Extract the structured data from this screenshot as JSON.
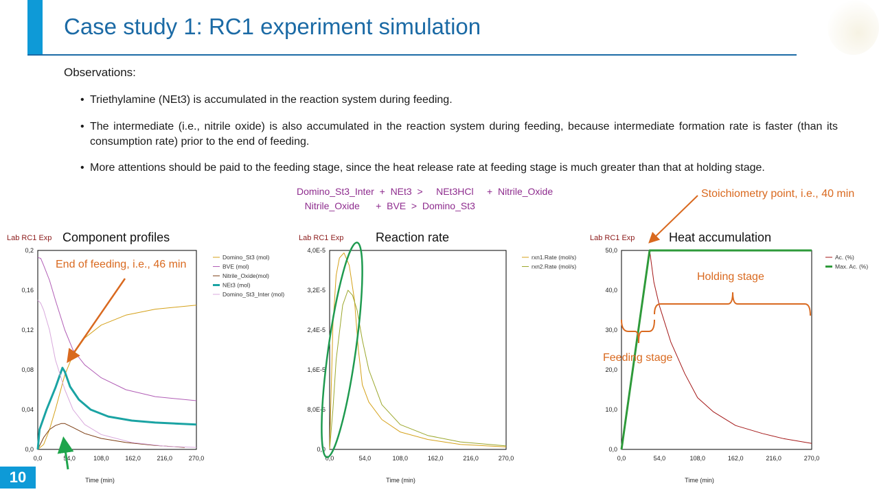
{
  "slide": {
    "title": "Case study 1: RC1 experiment simulation",
    "observations_heading": "Observations:",
    "bullets": [
      "Triethylamine (NEt3) is accumulated in the reaction system during feeding.",
      "The intermediate (i.e., nitrile oxide) is also accumulated in the reaction system during feeding, because intermediate formation rate is faster (than its consumption rate) prior to the end of feeding.",
      "More attentions should be paid to the feeding stage, since the heat release rate at feeding stage is much greater than that at holding stage."
    ],
    "bullet_char": "•",
    "equations": [
      "Domino_St3_Inter  +  NEt3  >     NEt3HCl     +  Nitrile_Oxide",
      "   Nitrile_Oxide      +  BVE  >  Domino_St3"
    ],
    "page_number": "10",
    "accent_color": "#0e9ad7",
    "title_color": "#1b6aa5",
    "annotation_color": "#d9691f"
  },
  "annotations": {
    "end_of_feeding": "End of feeding, i.e., 46 min",
    "stoichiometry_point": "Stoichiometry point, i.e., 40 min",
    "holding_stage": "Holding stage",
    "feeding_stage": "Feeding stage"
  },
  "chart_data": [
    {
      "type": "line",
      "title": "Component profiles",
      "source_label": "Lab  RC1  Exp",
      "xlabel": "Time (min)",
      "ylabel": "",
      "xlim": [
        0,
        270
      ],
      "ylim": [
        0,
        0.2
      ],
      "xticks": [
        "0,0",
        "54,0",
        "108,0",
        "162,0",
        "216,0",
        "270,0"
      ],
      "yticks": [
        "0,0",
        "0,04",
        "0,08",
        "0,12",
        "0,16",
        "0,2"
      ],
      "legend": "right",
      "series": [
        {
          "name": "Domino_St3 (mol)",
          "color": "#d4a017",
          "width": 1,
          "x": [
            0,
            10,
            20,
            30,
            46,
            60,
            80,
            108,
            150,
            200,
            270
          ],
          "y": [
            0,
            0.005,
            0.02,
            0.04,
            0.075,
            0.095,
            0.112,
            0.125,
            0.135,
            0.141,
            0.145
          ]
        },
        {
          "name": "BVE (mol)",
          "color": "#b05cb5",
          "width": 1,
          "x": [
            0,
            5,
            10,
            20,
            30,
            46,
            60,
            80,
            108,
            150,
            200,
            270
          ],
          "y": [
            0.193,
            0.192,
            0.185,
            0.17,
            0.15,
            0.12,
            0.1,
            0.085,
            0.072,
            0.06,
            0.053,
            0.049
          ]
        },
        {
          "name": "Nitrile_Oxide(mol)",
          "color": "#7a3b10",
          "width": 1,
          "x": [
            0,
            10,
            20,
            30,
            40,
            46,
            60,
            80,
            108,
            150,
            200,
            250
          ],
          "y": [
            0,
            0.012,
            0.02,
            0.024,
            0.026,
            0.026,
            0.022,
            0.016,
            0.011,
            0.007,
            0.004,
            0.002
          ]
        },
        {
          "name": "NEt3 (mol)",
          "color": "#1aa3a3",
          "width": 3,
          "x": [
            0,
            3,
            15,
            30,
            42,
            46,
            55,
            70,
            90,
            120,
            160,
            200,
            270
          ],
          "y": [
            0,
            0.02,
            0.04,
            0.062,
            0.082,
            0.078,
            0.063,
            0.05,
            0.04,
            0.033,
            0.029,
            0.027,
            0.025
          ]
        },
        {
          "name": "Domino_St3_Inter (mol)",
          "color": "#d8a8dc",
          "width": 1,
          "x": [
            0,
            5,
            10,
            20,
            30,
            46,
            60,
            80,
            108,
            160,
            220,
            270
          ],
          "y": [
            0.15,
            0.147,
            0.14,
            0.12,
            0.09,
            0.06,
            0.04,
            0.025,
            0.015,
            0.007,
            0.003,
            0.002
          ]
        }
      ]
    },
    {
      "type": "line",
      "title": "Reaction rate",
      "source_label": "Lab  RC1  Exp",
      "xlabel": "Time (min)",
      "ylabel": "",
      "xlim": [
        0,
        270
      ],
      "ylim": [
        0,
        4e-05
      ],
      "xticks": [
        "0,0",
        "54,0",
        "108,0",
        "162,0",
        "216,0",
        "270,0"
      ],
      "yticks": [
        "0,0",
        "8,0E-6",
        "1,6E-5",
        "2,4E-5",
        "3,2E-5",
        "4,0E-5"
      ],
      "legend": "right",
      "series": [
        {
          "name": "rxn1.Rate (mol/s)",
          "color": "#d4a017",
          "width": 1,
          "x": [
            0,
            5,
            10,
            15,
            22,
            30,
            38,
            44,
            50,
            60,
            80,
            108,
            150,
            200,
            270
          ],
          "y": [
            0,
            2.5e-05,
            3.5e-05,
            3.85e-05,
            3.95e-05,
            3.7e-05,
            3e-05,
            2e-05,
            1.3e-05,
            9.5e-06,
            6e-06,
            3.5e-06,
            2e-06,
            1e-06,
            5e-07
          ]
        },
        {
          "name": "rxn2.Rate (mol/s)",
          "color": "#9aa62a",
          "width": 1,
          "x": [
            0,
            5,
            10,
            20,
            28,
            35,
            42,
            50,
            60,
            80,
            108,
            150,
            200,
            270
          ],
          "y": [
            0,
            8e-06,
            1.8e-05,
            2.9e-05,
            3.2e-05,
            3.1e-05,
            2.8e-05,
            2.2e-05,
            1.6e-05,
            9e-06,
            5e-06,
            2.8e-06,
            1.5e-06,
            7e-07
          ]
        }
      ]
    },
    {
      "type": "line",
      "title": "Heat accumulation",
      "source_label": "Lab  RC1  Exp",
      "xlabel": "Time (min)",
      "ylabel": "",
      "xlim": [
        0,
        270
      ],
      "ylim": [
        0,
        50
      ],
      "xticks": [
        "0,0",
        "54,0",
        "108,0",
        "162,0",
        "216,0",
        "270,0"
      ],
      "yticks": [
        "0,0",
        "10,0",
        "20,0",
        "30,0",
        "40,0",
        "50,0"
      ],
      "legend": "right",
      "series": [
        {
          "name": "Ac. (%)",
          "color": "#a31515",
          "width": 1,
          "x": [
            0,
            40,
            46,
            54,
            70,
            90,
            108,
            130,
            162,
            200,
            230,
            270
          ],
          "y": [
            0,
            50,
            42,
            36,
            27,
            19,
            13,
            9.5,
            6,
            4,
            2.7,
            1.5
          ]
        },
        {
          "name": "Max. Ac. (%)",
          "color": "#2e9a3a",
          "width": 3,
          "x": [
            0,
            40,
            270
          ],
          "y": [
            0,
            50,
            50
          ]
        }
      ]
    }
  ]
}
